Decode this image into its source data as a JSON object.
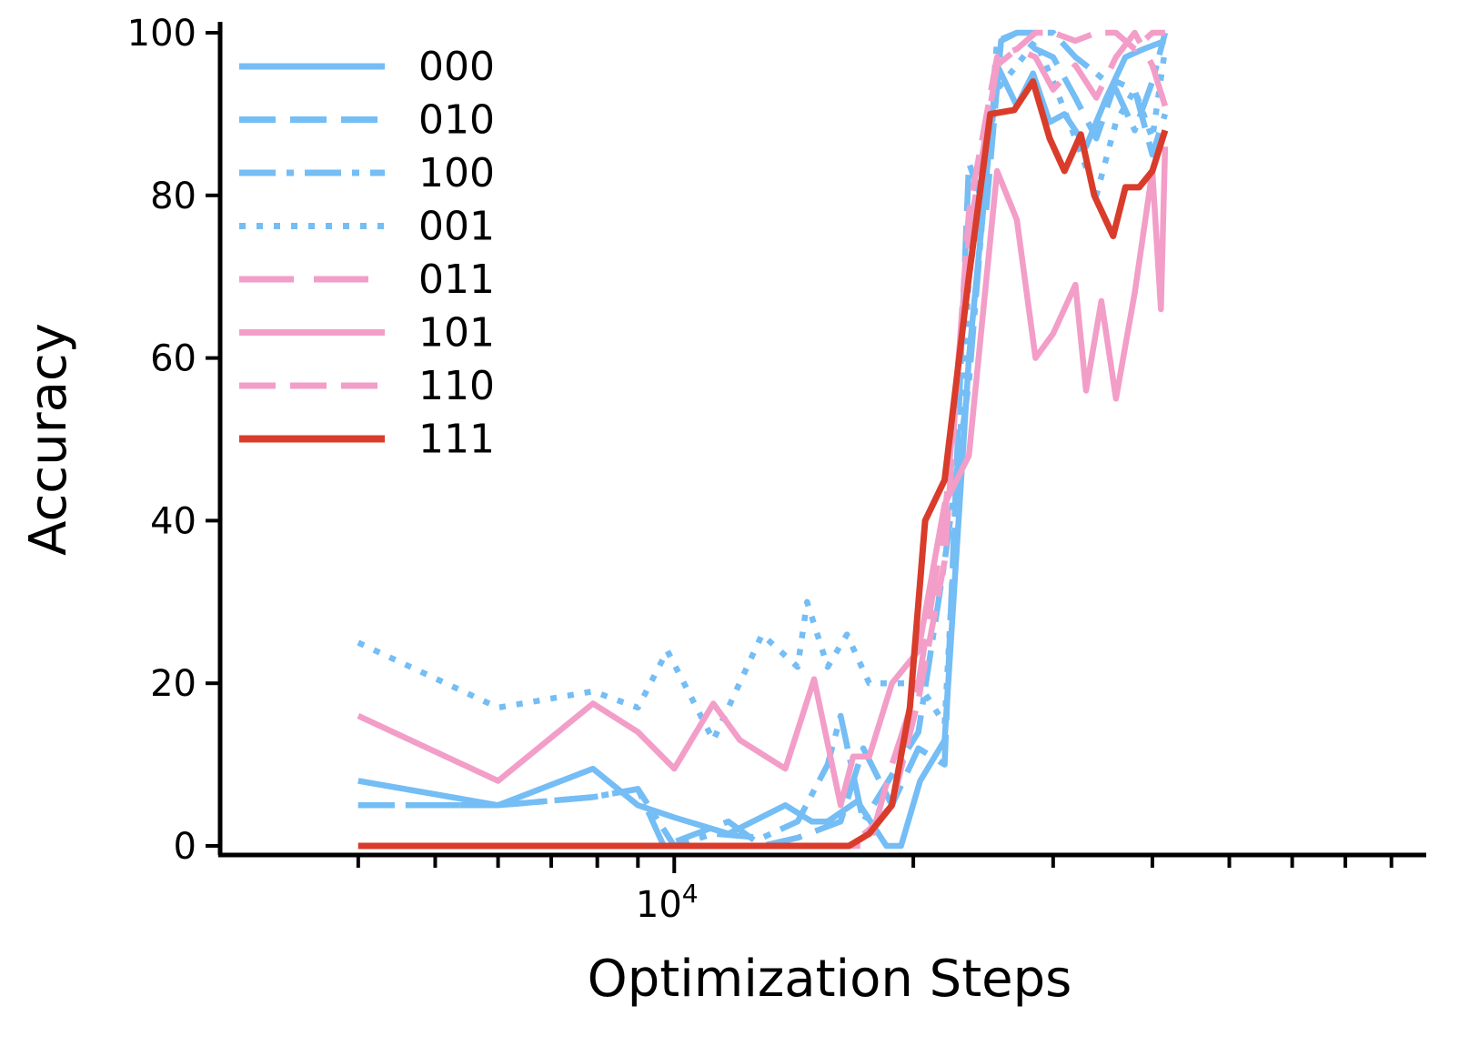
{
  "chart_data": {
    "type": "line",
    "xlabel": "Optimization Steps",
    "ylabel": "Accuracy",
    "x_scale": "log",
    "x_major_tick_labels": [
      {
        "value": 10000,
        "base": "10",
        "exp": "4"
      }
    ],
    "x_minor_ticks": [
      4000,
      5000,
      6000,
      7000,
      8000,
      9000,
      20000,
      30000,
      40000,
      50000,
      60000,
      70000,
      80000
    ],
    "xlim": [
      2680,
      88500
    ],
    "ylim": [
      0,
      100
    ],
    "y_ticks": [
      0,
      20,
      40,
      60,
      80,
      100
    ],
    "legend_position": "upper-left",
    "grid": false,
    "series": [
      {
        "name": "000",
        "color": "#74bdf5",
        "dash": "solid",
        "points": [
          [
            4000,
            8
          ],
          [
            6000,
            5
          ],
          [
            7900,
            9.5
          ],
          [
            9000,
            5
          ],
          [
            10000,
            3.5
          ],
          [
            11700,
            1.5
          ],
          [
            13800,
            5
          ],
          [
            14900,
            3
          ],
          [
            15600,
            3
          ],
          [
            17000,
            5.5
          ],
          [
            18500,
            0
          ],
          [
            19300,
            0
          ],
          [
            20400,
            8
          ],
          [
            21900,
            13
          ],
          [
            23500,
            60
          ],
          [
            25500,
            96
          ],
          [
            27000,
            91
          ],
          [
            28300,
            95
          ],
          [
            29700,
            89
          ],
          [
            31000,
            90
          ],
          [
            33000,
            86
          ],
          [
            35000,
            92
          ],
          [
            37000,
            97
          ],
          [
            39000,
            98
          ],
          [
            41500,
            99
          ]
        ]
      },
      {
        "name": "010",
        "color": "#74bdf5",
        "dash": "dash",
        "points": [
          [
            4000,
            5
          ],
          [
            6000,
            5
          ],
          [
            7900,
            6
          ],
          [
            9000,
            7
          ],
          [
            9700,
            0
          ],
          [
            11700,
            3
          ],
          [
            12900,
            0
          ],
          [
            14300,
            1
          ],
          [
            16200,
            3
          ],
          [
            17300,
            12
          ],
          [
            18800,
            5
          ],
          [
            20300,
            12
          ],
          [
            21900,
            10
          ],
          [
            23500,
            84
          ],
          [
            24700,
            78
          ],
          [
            25800,
            99
          ],
          [
            27000,
            100
          ],
          [
            28500,
            98
          ],
          [
            30000,
            97
          ],
          [
            32000,
            92
          ],
          [
            34000,
            87
          ],
          [
            36000,
            94
          ],
          [
            38000,
            93
          ],
          [
            40000,
            85
          ],
          [
            41500,
            90
          ]
        ]
      },
      {
        "name": "100",
        "color": "#74bdf5",
        "dash": "dashdot",
        "points": [
          [
            4000,
            5
          ],
          [
            6000,
            5
          ],
          [
            7900,
            6
          ],
          [
            9000,
            7
          ],
          [
            10000,
            0
          ],
          [
            11200,
            1.5
          ],
          [
            12900,
            1
          ],
          [
            14300,
            3
          ],
          [
            15600,
            10
          ],
          [
            16200,
            16
          ],
          [
            17300,
            3
          ],
          [
            18600,
            8
          ],
          [
            20300,
            14
          ],
          [
            21900,
            35
          ],
          [
            23500,
            57
          ],
          [
            25500,
            99
          ],
          [
            27000,
            100
          ],
          [
            28500,
            100
          ],
          [
            30000,
            100
          ],
          [
            32000,
            97
          ],
          [
            34000,
            95
          ],
          [
            36000,
            93
          ],
          [
            38000,
            88
          ],
          [
            40000,
            94
          ],
          [
            41500,
            100
          ]
        ]
      },
      {
        "name": "001",
        "color": "#74bdf5",
        "dash": "dot",
        "points": [
          [
            4000,
            25
          ],
          [
            6000,
            17
          ],
          [
            7900,
            19
          ],
          [
            9000,
            17
          ],
          [
            9800,
            24
          ],
          [
            11200,
            13
          ],
          [
            12900,
            26
          ],
          [
            14300,
            22
          ],
          [
            14700,
            30
          ],
          [
            15600,
            22
          ],
          [
            16500,
            26
          ],
          [
            17600,
            20
          ],
          [
            18800,
            20
          ],
          [
            20300,
            20
          ],
          [
            21900,
            15
          ],
          [
            23500,
            70
          ],
          [
            25500,
            93
          ],
          [
            27000,
            96
          ],
          [
            28500,
            99
          ],
          [
            30000,
            94
          ],
          [
            32000,
            87
          ],
          [
            34000,
            80
          ],
          [
            36000,
            89
          ],
          [
            38000,
            93
          ],
          [
            40000,
            87
          ],
          [
            41500,
            98
          ]
        ]
      },
      {
        "name": "011",
        "color": "#f29ec8",
        "dash": "longdash",
        "points": [
          [
            4000,
            0
          ],
          [
            6000,
            0
          ],
          [
            7900,
            0
          ],
          [
            9000,
            0
          ],
          [
            10000,
            0
          ],
          [
            11200,
            0
          ],
          [
            12900,
            0
          ],
          [
            14300,
            0
          ],
          [
            15600,
            0
          ],
          [
            16600,
            0
          ],
          [
            17600,
            0
          ],
          [
            18800,
            10
          ],
          [
            20300,
            20
          ],
          [
            21900,
            40
          ],
          [
            23500,
            75
          ],
          [
            25500,
            96
          ],
          [
            27000,
            98
          ],
          [
            28500,
            97
          ],
          [
            30000,
            93
          ],
          [
            32000,
            96
          ],
          [
            34000,
            92
          ],
          [
            36000,
            97
          ],
          [
            38000,
            100
          ],
          [
            40000,
            96
          ],
          [
            41500,
            91
          ]
        ]
      },
      {
        "name": "101",
        "color": "#f29ec8",
        "dash": "solid",
        "points": [
          [
            4000,
            16
          ],
          [
            6000,
            8
          ],
          [
            7900,
            17.5
          ],
          [
            9000,
            14
          ],
          [
            10000,
            9.5
          ],
          [
            11200,
            17.5
          ],
          [
            12100,
            13
          ],
          [
            13800,
            9.5
          ],
          [
            15000,
            20.5
          ],
          [
            16200,
            5
          ],
          [
            16800,
            11
          ],
          [
            17600,
            11
          ],
          [
            18800,
            20
          ],
          [
            20300,
            24
          ],
          [
            21900,
            42
          ],
          [
            23500,
            48
          ],
          [
            25500,
            83
          ],
          [
            27000,
            77
          ],
          [
            28500,
            60
          ],
          [
            30000,
            63
          ],
          [
            32000,
            69
          ],
          [
            33000,
            56
          ],
          [
            34500,
            67
          ],
          [
            36000,
            55
          ],
          [
            38000,
            68
          ],
          [
            40000,
            83
          ],
          [
            41000,
            66
          ],
          [
            41500,
            86
          ]
        ]
      },
      {
        "name": "110",
        "color": "#f29ec8",
        "dash": "dash",
        "points": [
          [
            4000,
            0
          ],
          [
            6000,
            0
          ],
          [
            7900,
            0
          ],
          [
            9000,
            0
          ],
          [
            10000,
            0
          ],
          [
            11200,
            0
          ],
          [
            12900,
            0
          ],
          [
            14300,
            0
          ],
          [
            15600,
            0
          ],
          [
            16600,
            0
          ],
          [
            17600,
            2
          ],
          [
            18800,
            5
          ],
          [
            20300,
            18
          ],
          [
            21900,
            35
          ],
          [
            23500,
            78
          ],
          [
            25500,
            97
          ],
          [
            27000,
            98
          ],
          [
            28500,
            100
          ],
          [
            30000,
            100
          ],
          [
            32000,
            99
          ],
          [
            34000,
            100
          ],
          [
            36000,
            100
          ],
          [
            38000,
            98
          ],
          [
            40000,
            100
          ],
          [
            41500,
            100
          ]
        ]
      },
      {
        "name": "111",
        "color": "#d93c2b",
        "dash": "solid",
        "points": [
          [
            4000,
            0
          ],
          [
            6000,
            0
          ],
          [
            7900,
            0
          ],
          [
            9000,
            0
          ],
          [
            10000,
            0
          ],
          [
            11200,
            0
          ],
          [
            12900,
            0
          ],
          [
            14300,
            0
          ],
          [
            15600,
            0
          ],
          [
            16600,
            0
          ],
          [
            17600,
            1.5
          ],
          [
            18800,
            5
          ],
          [
            19800,
            17
          ],
          [
            20700,
            40
          ],
          [
            21900,
            45
          ],
          [
            23500,
            70
          ],
          [
            25000,
            90
          ],
          [
            26800,
            90.5
          ],
          [
            28300,
            94
          ],
          [
            29700,
            87
          ],
          [
            31000,
            83
          ],
          [
            32500,
            87.5
          ],
          [
            33800,
            80
          ],
          [
            35700,
            75
          ],
          [
            37000,
            81
          ],
          [
            38500,
            81
          ],
          [
            40000,
            83
          ],
          [
            41500,
            88
          ]
        ]
      }
    ]
  }
}
